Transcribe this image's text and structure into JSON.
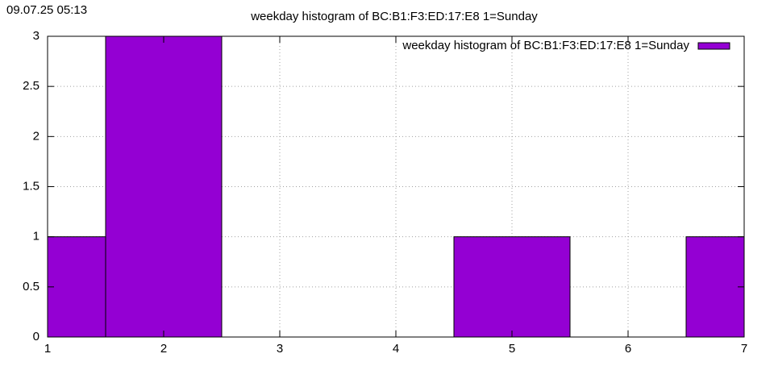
{
  "timestamp": "09.07.25 05:13",
  "chart_data": {
    "type": "bar",
    "title": "weekday histogram of BC:B1:F3:ED:17:E8 1=Sunday",
    "x": [
      1,
      2,
      3,
      4,
      5,
      6,
      7
    ],
    "series": [
      {
        "name": "weekday histogram of BC:B1:F3:ED:17:E8 1=Sunday",
        "color": "#9400d3",
        "values": [
          1,
          3,
          0,
          0,
          1,
          0,
          1
        ]
      }
    ],
    "xlim": [
      1,
      7
    ],
    "xticks": [
      1,
      2,
      3,
      4,
      5,
      6,
      7
    ],
    "ylim": [
      0,
      3
    ],
    "yticks": [
      0,
      0.5,
      1,
      1.5,
      2,
      2.5,
      3
    ],
    "grid": true,
    "legend": "top-right"
  }
}
